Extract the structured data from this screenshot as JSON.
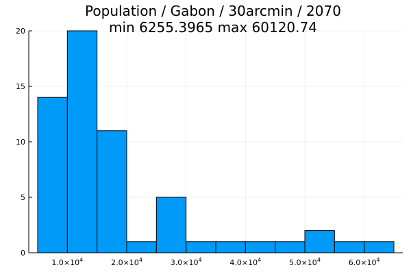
{
  "chart_data": {
    "type": "bar",
    "title_lines": [
      "Population / Gabon / 30arcmin / 2070",
      "min 6255.3965  max 60120.74"
    ],
    "xlabel": "",
    "ylabel": "",
    "bin_width": 5000,
    "bins": [
      {
        "start": 5000,
        "end": 10000,
        "count": 14
      },
      {
        "start": 10000,
        "end": 15000,
        "count": 20
      },
      {
        "start": 15000,
        "end": 20000,
        "count": 11
      },
      {
        "start": 20000,
        "end": 25000,
        "count": 1
      },
      {
        "start": 25000,
        "end": 30000,
        "count": 5
      },
      {
        "start": 30000,
        "end": 35000,
        "count": 1
      },
      {
        "start": 35000,
        "end": 40000,
        "count": 1
      },
      {
        "start": 40000,
        "end": 45000,
        "count": 1
      },
      {
        "start": 45000,
        "end": 50000,
        "count": 1
      },
      {
        "start": 50000,
        "end": 55000,
        "count": 2
      },
      {
        "start": 55000,
        "end": 60000,
        "count": 1
      },
      {
        "start": 60000,
        "end": 65000,
        "count": 1
      }
    ],
    "xlim": [
      3500,
      66500
    ],
    "ylim": [
      0,
      20
    ],
    "x_ticks": [
      {
        "value": 10000,
        "mantissa": "1.0×10",
        "exp": "4"
      },
      {
        "value": 20000,
        "mantissa": "2.0×10",
        "exp": "4"
      },
      {
        "value": 30000,
        "mantissa": "3.0×10",
        "exp": "4"
      },
      {
        "value": 40000,
        "mantissa": "4.0×10",
        "exp": "4"
      },
      {
        "value": 50000,
        "mantissa": "5.0×10",
        "exp": "4"
      },
      {
        "value": 60000,
        "mantissa": "6.0×10",
        "exp": "4"
      }
    ],
    "y_ticks": [
      {
        "value": 0,
        "label": "0"
      },
      {
        "value": 5,
        "label": "5"
      },
      {
        "value": 10,
        "label": "10"
      },
      {
        "value": 15,
        "label": "15"
      },
      {
        "value": 20,
        "label": "20"
      }
    ],
    "grid": true,
    "legend": "none",
    "bar_color": "#009af9",
    "bar_edge_color": "#000000"
  }
}
